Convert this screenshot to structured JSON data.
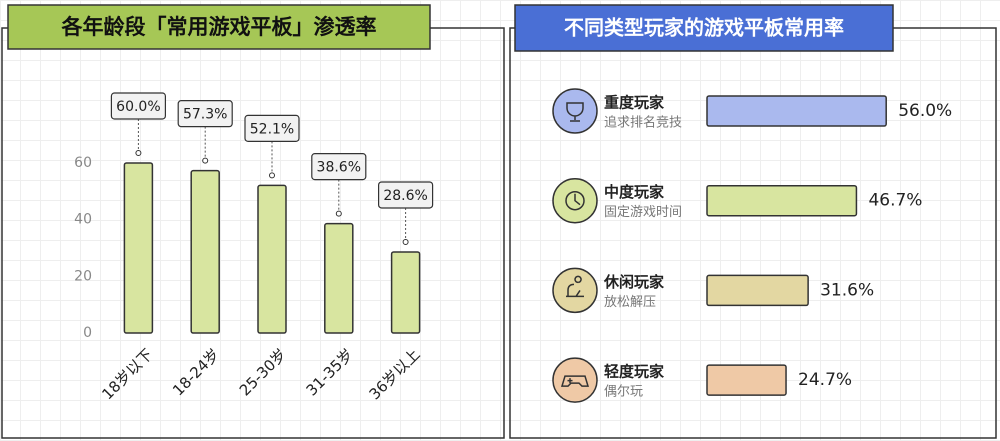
{
  "chart_data": [
    {
      "type": "bar",
      "title": "各年龄段「常用游戏平板」渗透率",
      "categories": [
        "18岁以下",
        "18-24岁",
        "25-30岁",
        "31-35岁",
        "36岁以上"
      ],
      "values": [
        60.0,
        57.3,
        52.1,
        38.6,
        28.6
      ],
      "value_labels": [
        "60.0%",
        "57.3%",
        "52.1%",
        "38.6%",
        "28.6%"
      ],
      "color": "#d8e5a0",
      "ylim": [
        0,
        60
      ],
      "yticks": [
        0,
        20,
        40,
        60
      ]
    },
    {
      "type": "hbar",
      "title": "不同类型玩家的游戏平板常用率",
      "categories": [
        "重度玩家",
        "中度玩家",
        "休闲玩家",
        "轻度玩家"
      ],
      "descriptions": [
        "追求排名竞技",
        "固定游戏时间",
        "放松解压",
        "偶尔玩"
      ],
      "values": [
        56.0,
        46.7,
        31.6,
        24.7
      ],
      "value_labels": [
        "56.0%",
        "46.7%",
        "31.6%",
        "24.7%"
      ],
      "colors": [
        "#aab9ee",
        "#d8e5a0",
        "#e3d7a2",
        "#efc9a6"
      ]
    }
  ]
}
